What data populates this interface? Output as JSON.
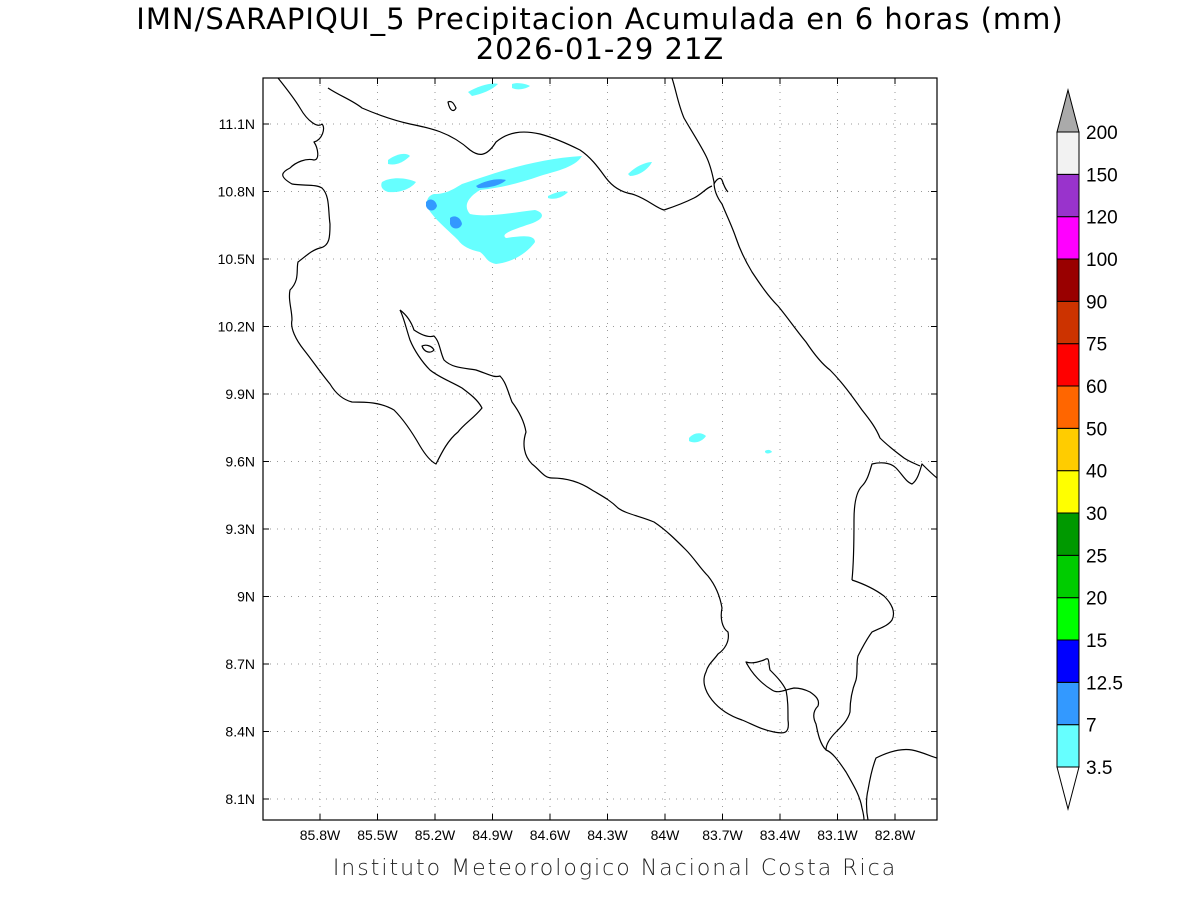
{
  "title": {
    "line1": "IMN/SARAPIQUI_5 Precipitacion Acumulada en 6 horas (mm)",
    "line2": "2026-01-29 21Z"
  },
  "footer": "Instituto Meteorologico Nacional Costa Rica",
  "map": {
    "lon_ticks": [
      "85.8W",
      "85.5W",
      "85.2W",
      "84.9W",
      "84.6W",
      "84.3W",
      "84W",
      "83.7W",
      "83.4W",
      "83.1W",
      "82.8W"
    ],
    "lat_ticks": [
      "11.1N",
      "10.8N",
      "10.5N",
      "10.2N",
      "9.9N",
      "9.6N",
      "9.3N",
      "9N",
      "8.7N",
      "8.4N",
      "8.1N"
    ],
    "grid": true,
    "coastline_color": "#000000",
    "precip_cells": [
      {
        "lon": -84.87,
        "lat": 10.85,
        "category": "7"
      },
      {
        "lon": -85.12,
        "lat": 10.74,
        "category": "7"
      },
      {
        "lon": -85.04,
        "lat": 10.66,
        "category": "7"
      },
      {
        "lon": -83.68,
        "lat": 9.71,
        "category": "3.5"
      },
      {
        "lon": -83.33,
        "lat": 9.64,
        "category": "3.5"
      }
    ]
  },
  "colorbar": {
    "labels": [
      "3.5",
      "7",
      "12.5",
      "15",
      "20",
      "25",
      "30",
      "40",
      "50",
      "60",
      "75",
      "90",
      "100",
      "120",
      "150",
      "200"
    ],
    "colors": [
      "#66ffff",
      "#3399ff",
      "#0000ff",
      "#00ff00",
      "#00cc00",
      "#009900",
      "#ffff00",
      "#ffcc00",
      "#ff6600",
      "#ff0000",
      "#cc3300",
      "#990000",
      "#ff00ff",
      "#9933cc",
      "#f2f2f2"
    ],
    "top_arrow_color": "#aaaaaa",
    "bottom_arrow_color": "#ffffff"
  }
}
